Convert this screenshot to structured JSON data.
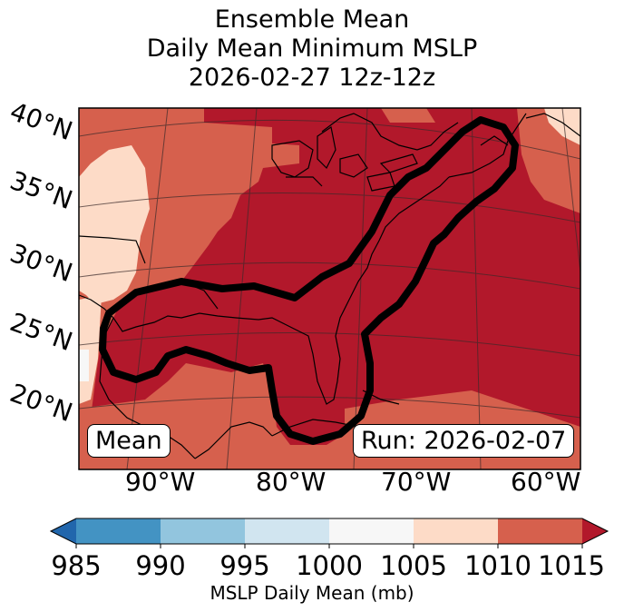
{
  "title": {
    "line1": "Ensemble Mean",
    "line2": "Daily Mean Minimum MSLP",
    "line3": "2026-02-27 12z-12z"
  },
  "map": {
    "lat_labels": [
      "40°N",
      "35°N",
      "30°N",
      "25°N",
      "20°N"
    ],
    "lon_labels": [
      "90°W",
      "80°W",
      "70°W",
      "60°W"
    ],
    "mean_label": "Mean",
    "run_label": "Run: 2026-02-07"
  },
  "colorbar": {
    "title": "MSLP Daily Mean (mb)",
    "ticks": [
      "985",
      "990",
      "995",
      "1000",
      "1005",
      "1010",
      "1015"
    ],
    "colors": {
      "below_985": "#2166ac",
      "985_990": "#4393c3",
      "990_995": "#92c5de",
      "995_1000": "#d1e5f0",
      "1000_1005": "#f7f7f7",
      "1005_1010": "#fddbc7",
      "1010_1015": "#d6604d",
      "above_1015": "#b2182b"
    }
  }
}
